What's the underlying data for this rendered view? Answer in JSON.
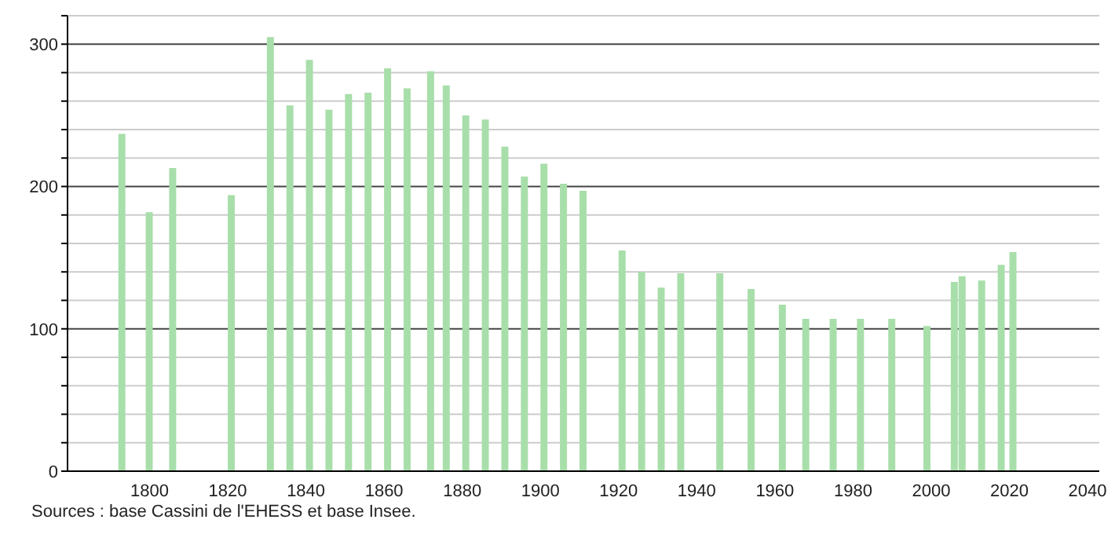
{
  "chart_data": {
    "type": "bar",
    "x": [
      1793,
      1800,
      1806,
      1821,
      1831,
      1836,
      1841,
      1846,
      1851,
      1856,
      1861,
      1866,
      1872,
      1876,
      1881,
      1886,
      1891,
      1896,
      1901,
      1906,
      1911,
      1921,
      1926,
      1931,
      1936,
      1946,
      1954,
      1962,
      1968,
      1975,
      1982,
      1990,
      1999,
      2006,
      2008,
      2013,
      2018,
      2021
    ],
    "values": [
      237,
      182,
      213,
      194,
      305,
      257,
      289,
      254,
      265,
      266,
      283,
      269,
      281,
      271,
      250,
      247,
      228,
      207,
      216,
      202,
      197,
      155,
      140,
      129,
      139,
      139,
      128,
      117,
      107,
      107,
      107,
      107,
      102,
      133,
      137,
      134,
      145,
      154
    ],
    "color": "#a8deaa",
    "xlim": [
      1779,
      2043
    ],
    "xticks": [
      1800,
      1820,
      1840,
      1860,
      1880,
      1900,
      1920,
      1940,
      1960,
      1980,
      2000,
      2020,
      2040
    ],
    "ylim": [
      0,
      320
    ],
    "yticks": [
      0,
      {
        "value": 20,
        "label": null
      },
      {
        "value": 40,
        "label": null
      },
      {
        "value": 60,
        "label": null
      },
      {
        "value": 80,
        "label": null
      },
      100,
      {
        "value": 120,
        "label": null
      },
      {
        "value": 140,
        "label": null
      },
      {
        "value": 160,
        "label": null
      },
      {
        "value": 180,
        "label": null
      },
      200,
      {
        "value": 220,
        "label": null
      },
      {
        "value": 240,
        "label": null
      },
      {
        "value": 260,
        "label": null
      },
      {
        "value": 280,
        "label": null
      },
      300,
      {
        "value": 320,
        "label": null
      }
    ],
    "grid": "y",
    "annotations": [
      "Sources : base Cassini de l'EHESS et base Insee."
    ]
  }
}
